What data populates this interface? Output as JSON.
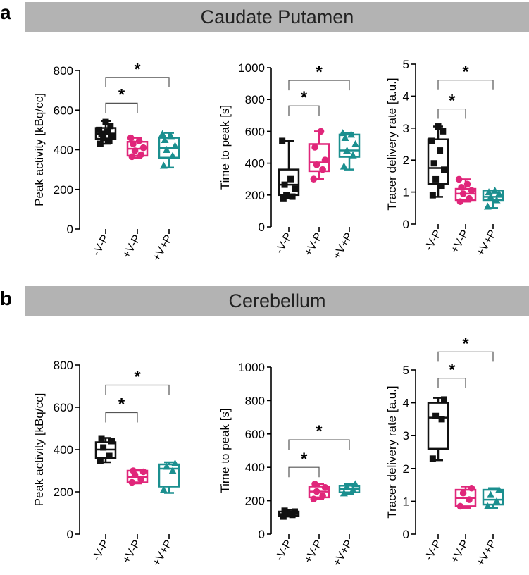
{
  "figure": {
    "panels": [
      {
        "letter": "a",
        "title": "Caudate Putamen"
      },
      {
        "letter": "b",
        "title": "Cerebellum"
      }
    ]
  },
  "colors": {
    "-V-P": "#111111",
    "+V-P": "#e0267a",
    "+V+P": "#1b8f8f"
  },
  "markers": {
    "-V-P": "square",
    "+V-P": "circle",
    "+V+P": "triangle"
  },
  "chart_data": [
    {
      "panel": "a",
      "type": "box",
      "ylabel": "Peak activity [kBq/cc]",
      "ylim": [
        0,
        800
      ],
      "yticks": [
        0,
        200,
        400,
        600,
        800
      ],
      "categories": [
        "-V-P",
        "+V-P",
        "+V+P"
      ],
      "boxes": [
        {
          "min": 430,
          "q1": 455,
          "median": 480,
          "q3": 510,
          "max": 545,
          "points": [
            430,
            445,
            460,
            470,
            480,
            490,
            500,
            520,
            540
          ]
        },
        {
          "min": 360,
          "q1": 370,
          "median": 405,
          "q3": 440,
          "max": 460,
          "points": [
            365,
            375,
            395,
            410,
            430,
            445,
            460
          ]
        },
        {
          "min": 310,
          "q1": 360,
          "median": 410,
          "q3": 460,
          "max": 485,
          "points": [
            320,
            370,
            400,
            420,
            450,
            470,
            480
          ]
        }
      ],
      "significance": [
        {
          "from": 0,
          "to": 1,
          "label": "*",
          "y": 635
        },
        {
          "from": 0,
          "to": 2,
          "label": "*",
          "y": 765
        }
      ]
    },
    {
      "panel": "a",
      "type": "box",
      "ylabel": "Time to peak [s]",
      "ylim": [
        0,
        1000
      ],
      "yticks": [
        0,
        200,
        400,
        600,
        800,
        1000
      ],
      "categories": [
        "-V-P",
        "+V-P",
        "+V+P"
      ],
      "boxes": [
        {
          "min": 180,
          "q1": 200,
          "median": 265,
          "q3": 360,
          "max": 540,
          "points": [
            180,
            190,
            200,
            240,
            265,
            300,
            540
          ]
        },
        {
          "min": 300,
          "q1": 350,
          "median": 405,
          "q3": 520,
          "max": 600,
          "points": [
            300,
            360,
            390,
            420,
            500,
            600
          ]
        },
        {
          "min": 360,
          "q1": 440,
          "median": 480,
          "q3": 580,
          "max": 590,
          "points": [
            380,
            450,
            480,
            520,
            560,
            580,
            590
          ]
        }
      ],
      "significance": [
        {
          "from": 0,
          "to": 1,
          "label": "*",
          "y": 760
        },
        {
          "from": 0,
          "to": 2,
          "label": "*",
          "y": 920
        }
      ]
    },
    {
      "panel": "a",
      "type": "box",
      "ylabel": "Tracer delivery rate [a.u.]",
      "ylim": [
        0,
        5
      ],
      "yticks": [
        0,
        1,
        2,
        3,
        4,
        5
      ],
      "categories": [
        "-V-P",
        "+V-P",
        "+V+P"
      ],
      "boxes": [
        {
          "min": 0.85,
          "q1": 1.25,
          "median": 1.75,
          "q3": 2.65,
          "max": 3.05,
          "points": [
            0.9,
            1.2,
            1.4,
            1.7,
            1.9,
            2.3,
            2.6,
            2.9,
            3.05
          ]
        },
        {
          "min": 0.7,
          "q1": 0.75,
          "median": 0.95,
          "q3": 1.1,
          "max": 1.4,
          "points": [
            0.7,
            0.8,
            0.95,
            1.05,
            1.15,
            1.25,
            1.4
          ]
        },
        {
          "min": 0.5,
          "q1": 0.75,
          "median": 0.85,
          "q3": 1.05,
          "max": 1.05,
          "points": [
            0.55,
            0.75,
            0.85,
            0.95,
            1.0,
            1.05
          ]
        }
      ],
      "significance": [
        {
          "from": 0,
          "to": 1,
          "label": "*",
          "y": 3.6
        },
        {
          "from": 0,
          "to": 2,
          "label": "*",
          "y": 4.5
        }
      ]
    },
    {
      "panel": "b",
      "type": "box",
      "ylabel": "Peak activity [kBq/cc]",
      "ylim": [
        0,
        800
      ],
      "yticks": [
        0,
        200,
        400,
        600,
        800
      ],
      "categories": [
        "-V-P",
        "+V-P",
        "+V+P"
      ],
      "boxes": [
        {
          "min": 340,
          "q1": 360,
          "median": 400,
          "q3": 435,
          "max": 455,
          "points": [
            345,
            370,
            410,
            440,
            450
          ]
        },
        {
          "min": 240,
          "q1": 245,
          "median": 270,
          "q3": 300,
          "max": 305,
          "points": [
            245,
            260,
            280,
            295,
            300
          ]
        },
        {
          "min": 195,
          "q1": 225,
          "median": 310,
          "q3": 330,
          "max": 340,
          "points": [
            210,
            300,
            320,
            335
          ]
        }
      ],
      "significance": [
        {
          "from": 0,
          "to": 1,
          "label": "*",
          "y": 575
        },
        {
          "from": 0,
          "to": 2,
          "label": "*",
          "y": 705
        }
      ]
    },
    {
      "panel": "b",
      "type": "box",
      "ylabel": "Time to peak [s]",
      "ylim": [
        0,
        1000
      ],
      "yticks": [
        0,
        200,
        400,
        600,
        800,
        1000
      ],
      "categories": [
        "-V-P",
        "+V-P",
        "+V+P"
      ],
      "boxes": [
        {
          "min": 105,
          "q1": 110,
          "median": 120,
          "q3": 135,
          "max": 145,
          "points": [
            105,
            115,
            125,
            135,
            140
          ]
        },
        {
          "min": 210,
          "q1": 220,
          "median": 255,
          "q3": 285,
          "max": 300,
          "points": [
            210,
            230,
            255,
            280,
            300
          ]
        },
        {
          "min": 240,
          "q1": 250,
          "median": 270,
          "q3": 290,
          "max": 300,
          "points": [
            245,
            265,
            285,
            300
          ]
        }
      ],
      "significance": [
        {
          "from": 0,
          "to": 1,
          "label": "*",
          "y": 400
        },
        {
          "from": 0,
          "to": 2,
          "label": "*",
          "y": 565
        }
      ]
    },
    {
      "panel": "b",
      "type": "box",
      "ylabel": "Tracer delivery rate [a.u.]",
      "ylim": [
        0,
        5
      ],
      "yticks": [
        0,
        1,
        2,
        3,
        4,
        5
      ],
      "categories": [
        "-V-P",
        "+V-P",
        "+V+P"
      ],
      "boxes": [
        {
          "min": 2.25,
          "q1": 2.6,
          "median": 3.55,
          "q3": 4.0,
          "max": 4.15,
          "points": [
            2.3,
            3.5,
            3.6,
            4.1
          ]
        },
        {
          "min": 0.8,
          "q1": 0.85,
          "median": 1.1,
          "q3": 1.35,
          "max": 1.45,
          "points": [
            0.85,
            1.05,
            1.25,
            1.4
          ]
        },
        {
          "min": 0.8,
          "q1": 0.9,
          "median": 1.05,
          "q3": 1.35,
          "max": 1.4,
          "points": [
            0.85,
            1.0,
            1.2,
            1.35
          ]
        }
      ],
      "significance": [
        {
          "from": 0,
          "to": 1,
          "label": "*",
          "y": 4.75
        },
        {
          "from": 0,
          "to": 2,
          "label": "*",
          "y": 5.55
        }
      ]
    }
  ]
}
